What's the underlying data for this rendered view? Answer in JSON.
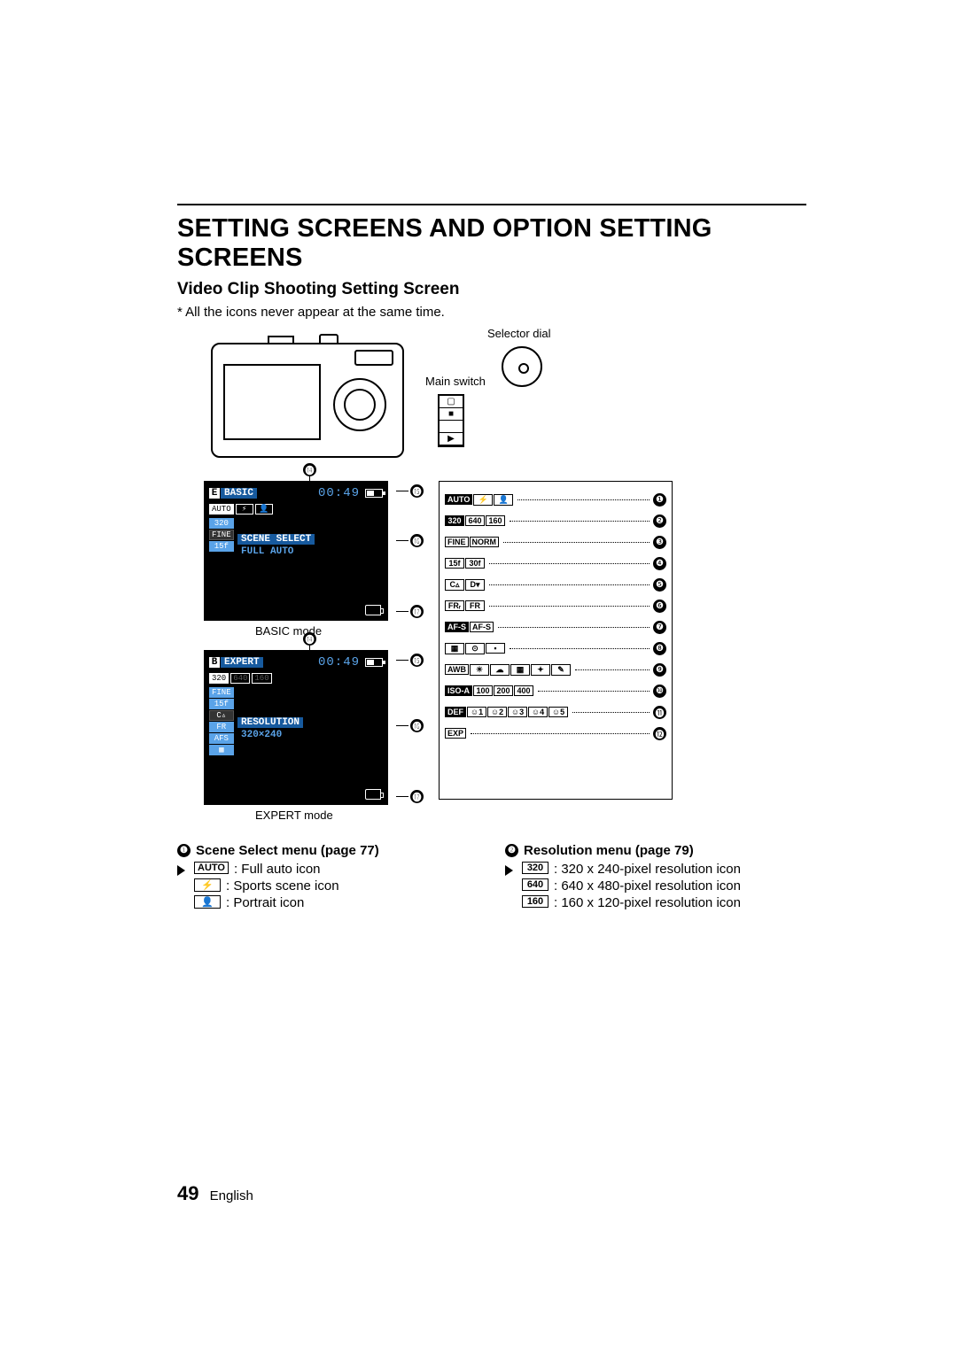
{
  "title": "SETTING SCREENS AND OPTION SETTING SCREENS",
  "subtitle": "Video Clip Shooting Setting Screen",
  "note": "* All the icons never appear at the same time.",
  "labels": {
    "selector_dial": "Selector dial",
    "main_switch": "Main switch",
    "basic_mode": "BASIC mode",
    "expert_mode": "EXPERT mode"
  },
  "lcd_basic": {
    "corner": "E",
    "tab": "BASIC",
    "time": "00:49",
    "row2": [
      "AUTO",
      "⚡",
      "👤"
    ],
    "left_strip": [
      "320",
      "FINE",
      "15f"
    ],
    "menu_label": "SCENE SELECT",
    "menu_line": "FULL AUTO"
  },
  "lcd_expert": {
    "corner": "B",
    "tab": "EXPERT",
    "time": "00:49",
    "row2": [
      "320",
      "640",
      "160"
    ],
    "left_strip": [
      "FINE",
      "15f",
      "C▵",
      "FR",
      "AFS",
      "▦"
    ],
    "menu_label": "RESOLUTION",
    "menu_line": "320×240"
  },
  "callouts": {
    "c14": "⓮",
    "c15": "⓯",
    "c16": "⓰",
    "c17": "⓱"
  },
  "legend_rows": [
    {
      "icons": [
        {
          "t": "AUTO",
          "inv": true
        },
        {
          "t": "⚡"
        },
        {
          "t": "👤"
        }
      ],
      "n": "❶"
    },
    {
      "icons": [
        {
          "t": "320",
          "inv": true
        },
        {
          "t": "640"
        },
        {
          "t": "160"
        }
      ],
      "n": "❷"
    },
    {
      "icons": [
        {
          "t": "FINE"
        },
        {
          "t": "NORM"
        }
      ],
      "n": "❸"
    },
    {
      "icons": [
        {
          "t": "15f"
        },
        {
          "t": "30f"
        }
      ],
      "n": "❹"
    },
    {
      "icons": [
        {
          "t": "C▵"
        },
        {
          "t": "D▾"
        }
      ],
      "n": "❺"
    },
    {
      "icons": [
        {
          "t": "FRᵣ"
        },
        {
          "t": "FR"
        }
      ],
      "n": "❻"
    },
    {
      "icons": [
        {
          "t": "AF-S",
          "inv": true
        },
        {
          "t": "AF-S"
        }
      ],
      "n": "❼"
    },
    {
      "icons": [
        {
          "t": "▦"
        },
        {
          "t": "⊙"
        },
        {
          "t": "▪"
        }
      ],
      "n": "❽"
    },
    {
      "icons": [
        {
          "t": "AWB"
        },
        {
          "t": "☀"
        },
        {
          "t": "☁"
        },
        {
          "t": "▦"
        },
        {
          "t": "✦"
        },
        {
          "t": "✎"
        }
      ],
      "n": "❾"
    },
    {
      "icons": [
        {
          "t": "ISO-A",
          "inv": true
        },
        {
          "t": "100"
        },
        {
          "t": "200"
        },
        {
          "t": "400"
        }
      ],
      "n": "❿"
    },
    {
      "icons": [
        {
          "t": "DEF",
          "inv": true
        },
        {
          "t": "☺1"
        },
        {
          "t": "☺2"
        },
        {
          "t": "☺3"
        },
        {
          "t": "☺4"
        },
        {
          "t": "☺5"
        }
      ],
      "n": "⓫"
    },
    {
      "icons": [
        {
          "t": "EXP"
        }
      ],
      "n": "⓬"
    }
  ],
  "menu1": {
    "title": "Scene Select menu (page 77)",
    "num": "❶",
    "items": [
      {
        "ico": "AUTO",
        "txt": ": Full auto icon",
        "first": true
      },
      {
        "ico": "⚡",
        "txt": ": Sports scene icon"
      },
      {
        "ico": "👤",
        "txt": ": Portrait icon"
      }
    ]
  },
  "menu2": {
    "title": "Resolution menu (page 79)",
    "num": "❷",
    "items": [
      {
        "ico": "320",
        "txt": ": 320 x 240-pixel resolution icon",
        "first": true
      },
      {
        "ico": "640",
        "txt": ": 640 x 480-pixel resolution icon"
      },
      {
        "ico": "160",
        "txt": ": 160 x 120-pixel resolution icon"
      }
    ]
  },
  "footer": {
    "page": "49",
    "lang": "English"
  }
}
